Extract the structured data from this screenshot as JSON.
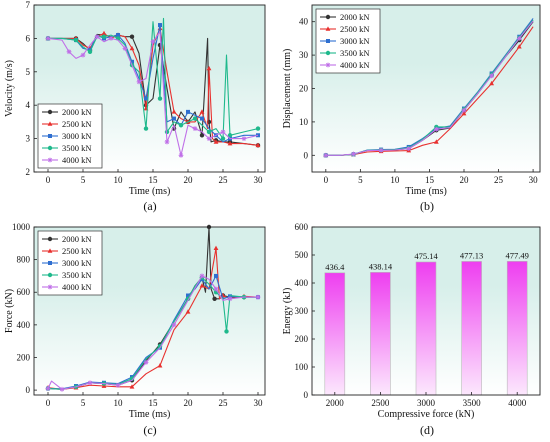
{
  "colors": {
    "plot_bg_top": "#d7efea",
    "plot_bg_bottom": "#ffffff",
    "series": [
      "#333333",
      "#e8312f",
      "#2f6fd0",
      "#1fb98c",
      "#c070e8"
    ],
    "bar_top": "#ee3ef0",
    "bar_bottom": "#fce8fd",
    "bar_label": "#9a2fc4"
  },
  "chart_data": [
    {
      "id": "a",
      "panel_label": "(a)",
      "type": "line",
      "xlabel": "Time (ms)",
      "ylabel": "Velocity (m/s)",
      "xlim": [
        -2,
        31
      ],
      "ylim": [
        2,
        7
      ],
      "xticks": [
        0,
        5,
        10,
        15,
        20,
        25,
        30
      ],
      "yticks": [
        2,
        3,
        4,
        5,
        6,
        7
      ],
      "legend_position": "bottom-left",
      "series": [
        {
          "name": "2000 kN",
          "marker": "circle",
          "x": [
            0,
            2,
            4,
            5,
            6,
            7,
            8,
            9,
            10,
            11,
            12,
            13,
            14,
            15,
            16,
            17,
            18,
            19,
            20,
            21,
            22,
            22.8,
            23,
            23.3,
            24,
            25,
            26,
            28,
            30
          ],
          "y": [
            6,
            6,
            6,
            5.85,
            5.65,
            6.12,
            6.1,
            6.05,
            6.1,
            6.05,
            6.05,
            5.55,
            4,
            4.2,
            5.8,
            4.5,
            3.3,
            3.8,
            3.5,
            3.8,
            3.1,
            6,
            3.5,
            2.9,
            2.95,
            2.9,
            2.9,
            2.85,
            2.8
          ]
        },
        {
          "name": "2500 kN",
          "marker": "triangle",
          "x": [
            0,
            2,
            4,
            5,
            6,
            7,
            8,
            9,
            10,
            11,
            12,
            13,
            14,
            15,
            16,
            17,
            18,
            19,
            20,
            21,
            22,
            22.8,
            23,
            23.5,
            24,
            25,
            26,
            28,
            30
          ],
          "y": [
            6,
            6,
            6,
            5.8,
            5.7,
            6.05,
            6.15,
            6.0,
            6.1,
            6.05,
            5.7,
            5.2,
            3.9,
            5.8,
            6.3,
            5.0,
            3.8,
            3.6,
            3.5,
            3.5,
            3.8,
            3.3,
            5.1,
            3.0,
            2.9,
            2.9,
            2.85,
            2.85,
            2.8
          ]
        },
        {
          "name": "3000 kN",
          "marker": "square",
          "x": [
            0,
            2,
            4,
            5,
            6,
            7,
            8,
            9,
            10,
            11,
            12,
            13,
            14,
            15,
            16,
            17,
            18,
            19,
            20,
            21,
            22,
            23,
            24,
            25,
            26,
            28,
            30
          ],
          "y": [
            6,
            6,
            5.95,
            5.7,
            5.65,
            6.1,
            6.0,
            6.05,
            6.1,
            5.85,
            5.3,
            4.8,
            4.2,
            5.4,
            6.4,
            3.5,
            3.6,
            3.4,
            3.8,
            3.7,
            3.6,
            3.3,
            3.1,
            2.9,
            3.0,
            3.1,
            3.1
          ]
        },
        {
          "name": "3500 kN",
          "marker": "circle",
          "x": [
            0,
            2,
            4,
            5,
            6,
            7,
            8,
            9,
            10,
            11,
            12,
            13,
            14,
            15,
            16,
            16.5,
            17,
            18,
            19,
            20,
            21,
            22,
            23,
            24,
            25,
            25.5,
            26,
            28,
            30
          ],
          "y": [
            6,
            6,
            5.95,
            5.75,
            5.6,
            6.05,
            6.05,
            6.1,
            6.0,
            5.8,
            5.2,
            5.0,
            3.3,
            6.5,
            4.2,
            6.6,
            3.2,
            3.5,
            3.4,
            3.5,
            3.6,
            3.4,
            3.2,
            3.3,
            3.0,
            5.5,
            3.1,
            3.2,
            3.3
          ]
        },
        {
          "name": "4000 kN",
          "marker": "star",
          "x": [
            0,
            2,
            3,
            4,
            5,
            6,
            7,
            8,
            9,
            10,
            11,
            12,
            13,
            14,
            15,
            16,
            17,
            18,
            19,
            20,
            21,
            22,
            23,
            24,
            25,
            26,
            28,
            30
          ],
          "y": [
            6,
            5.95,
            5.6,
            5.4,
            5.5,
            5.8,
            6.05,
            5.9,
            6.0,
            5.95,
            5.7,
            5.2,
            4.7,
            4.8,
            5.9,
            6.2,
            2.9,
            3.4,
            2.5,
            3.4,
            3.3,
            3.2,
            3.0,
            3.1,
            3.2,
            3.0,
            3.0,
            3.1
          ]
        }
      ]
    },
    {
      "id": "b",
      "panel_label": "(b)",
      "type": "line",
      "xlabel": "Time (ms)",
      "ylabel": "Displacement (mm)",
      "xlim": [
        -2,
        31
      ],
      "ylim": [
        -5,
        45
      ],
      "xticks": [
        0,
        5,
        10,
        15,
        20,
        25,
        30
      ],
      "yticks": [
        0,
        10,
        20,
        30,
        40
      ],
      "legend_position": "top-left",
      "series": [
        {
          "name": "2000 kN",
          "marker": "circle",
          "x": [
            0,
            2,
            4,
            6,
            8,
            10,
            12,
            14,
            16,
            18,
            20,
            22,
            24,
            26,
            28,
            30
          ],
          "y": [
            0,
            0,
            0.3,
            1.5,
            1.6,
            1.6,
            2.0,
            4.5,
            7.5,
            8.2,
            13.5,
            18.5,
            24,
            29.5,
            34.5,
            40
          ]
        },
        {
          "name": "2500 kN",
          "marker": "triangle",
          "x": [
            0,
            2,
            4,
            6,
            8,
            10,
            12,
            14,
            16,
            18,
            20,
            22,
            24,
            26,
            28,
            30
          ],
          "y": [
            0,
            0,
            0.2,
            1.0,
            1.2,
            1.3,
            1.4,
            3.0,
            4.0,
            8.0,
            12.5,
            17.0,
            21.5,
            27.0,
            32.5,
            38.5
          ]
        },
        {
          "name": "3000 kN",
          "marker": "square",
          "x": [
            0,
            2,
            4,
            6,
            8,
            10,
            12,
            14,
            16,
            18,
            20,
            22,
            24,
            26,
            28,
            30
          ],
          "y": [
            0,
            0,
            0.3,
            1.6,
            1.7,
            1.8,
            2.5,
            5.0,
            8.0,
            8.8,
            14.0,
            19.0,
            24.5,
            30.0,
            35.5,
            41
          ]
        },
        {
          "name": "3500 kN",
          "marker": "circle",
          "x": [
            0,
            2,
            4,
            6,
            8,
            10,
            12,
            14,
            16,
            18,
            20,
            22,
            24,
            26,
            28,
            30
          ],
          "y": [
            0,
            0,
            0.3,
            1.5,
            1.6,
            1.7,
            2.2,
            4.8,
            8.5,
            8.5,
            13.8,
            18.8,
            24.2,
            29.8,
            35.2,
            40.5
          ]
        },
        {
          "name": "4000 kN",
          "marker": "star",
          "x": [
            0,
            2,
            4,
            6,
            8,
            10,
            12,
            14,
            16,
            18,
            20,
            22,
            24,
            26,
            28,
            30
          ],
          "y": [
            0,
            0,
            0.4,
            1.4,
            1.5,
            1.6,
            2.0,
            4.5,
            7.8,
            8.3,
            13.5,
            18.5,
            23.8,
            29.5,
            35.0,
            40.2
          ]
        }
      ]
    },
    {
      "id": "c",
      "panel_label": "(c)",
      "type": "line",
      "xlabel": "Time (ms)",
      "ylabel": "Force (kN)",
      "xlim": [
        -2,
        31
      ],
      "ylim": [
        -30,
        1000
      ],
      "xticks": [
        0,
        5,
        10,
        15,
        20,
        25,
        30
      ],
      "yticks": [
        0,
        200,
        400,
        600,
        800,
        1000
      ],
      "legend_position": "top-left",
      "series": [
        {
          "name": "2000 kN",
          "marker": "circle",
          "x": [
            0,
            2,
            4,
            6,
            8,
            10,
            12,
            14,
            16,
            18,
            20,
            21,
            22,
            22.5,
            23,
            23.3,
            23.8,
            24.5,
            25,
            26,
            28,
            30
          ],
          "y": [
            10,
            5,
            20,
            45,
            40,
            30,
            60,
            180,
            280,
            420,
            560,
            640,
            690,
            600,
            1000,
            620,
            560,
            560,
            580,
            570,
            570,
            570
          ]
        },
        {
          "name": "2500 kN",
          "marker": "triangle",
          "x": [
            0,
            2,
            4,
            6,
            8,
            10,
            12,
            14,
            16,
            18,
            20,
            21,
            22,
            23,
            24,
            24.5,
            25,
            26,
            28,
            30
          ],
          "y": [
            15,
            5,
            15,
            30,
            25,
            20,
            20,
            100,
            150,
            370,
            480,
            560,
            640,
            620,
            870,
            560,
            580,
            560,
            575,
            570
          ]
        },
        {
          "name": "3000 kN",
          "marker": "square",
          "x": [
            0,
            2,
            4,
            6,
            8,
            10,
            12,
            14,
            16,
            18,
            20,
            21,
            22,
            23,
            24,
            25,
            26,
            28,
            30
          ],
          "y": [
            10,
            8,
            25,
            50,
            45,
            40,
            80,
            200,
            260,
            430,
            580,
            620,
            680,
            620,
            700,
            560,
            575,
            570,
            570
          ]
        },
        {
          "name": "3500 kN",
          "marker": "circle",
          "x": [
            0,
            2,
            4,
            6,
            8,
            10,
            12,
            14,
            16,
            18,
            20,
            21,
            22,
            23,
            24,
            25,
            25.5,
            26,
            28,
            30
          ],
          "y": [
            10,
            5,
            20,
            45,
            40,
            35,
            70,
            190,
            270,
            420,
            560,
            640,
            690,
            650,
            600,
            560,
            360,
            580,
            570,
            570
          ]
        },
        {
          "name": "4000 kN",
          "marker": "star",
          "x": [
            0,
            0.5,
            2,
            4,
            6,
            8,
            10,
            12,
            14,
            16,
            18,
            20,
            22,
            23,
            24,
            25,
            26,
            28,
            30
          ],
          "y": [
            10,
            55,
            5,
            20,
            45,
            40,
            30,
            60,
            170,
            260,
            400,
            550,
            700,
            680,
            620,
            550,
            560,
            570,
            570
          ]
        }
      ]
    },
    {
      "id": "d",
      "panel_label": "(d)",
      "type": "bar",
      "xlabel": "Compressive force (kN)",
      "ylabel": "Energy (kJ)",
      "ylim": [
        0,
        600
      ],
      "yticks": [
        0,
        100,
        200,
        300,
        400,
        500,
        600
      ],
      "categories": [
        "2000",
        "2500",
        "3000",
        "3500",
        "4000"
      ],
      "values": [
        436.4,
        438.14,
        475.14,
        477.13,
        477.49
      ],
      "value_labels": [
        "436.4",
        "438.14",
        "475.14",
        "477.13",
        "477.49"
      ]
    }
  ]
}
